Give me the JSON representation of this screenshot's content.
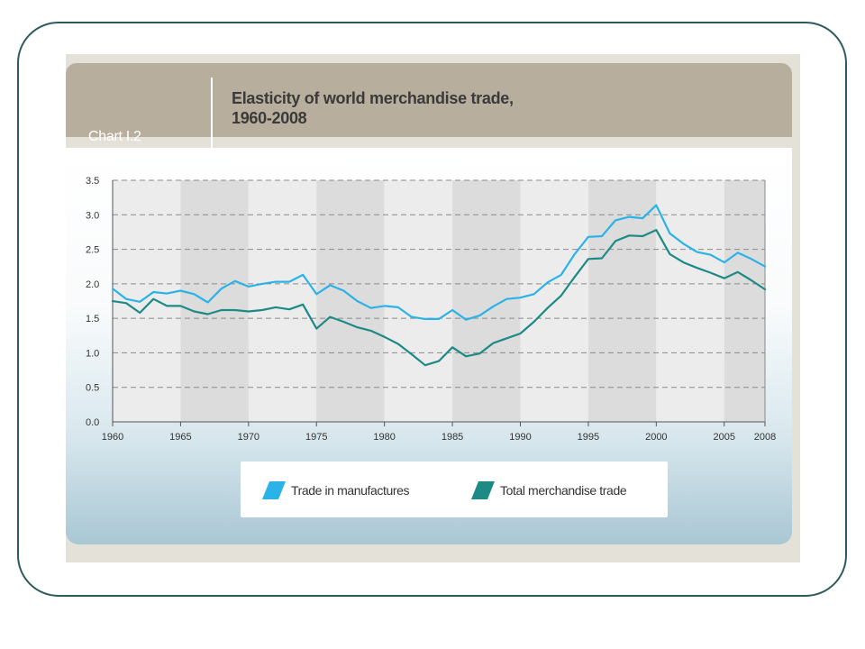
{
  "header": {
    "chart_number": "Chart I.2",
    "title_line1": "Elasticity of world merchandise trade,",
    "title_line2": "1960-2008"
  },
  "legend": {
    "items": [
      {
        "label": "Trade in manufactures",
        "color": "#2bb3e8"
      },
      {
        "label": "Total merchandise trade",
        "color": "#1e8a86"
      }
    ]
  },
  "colors": {
    "frame": "#2f5a5c",
    "header_band": "#b7ae9d",
    "plot_band_dark": "#dcdcdc",
    "plot_band_light": "#ececec"
  },
  "chart_data": {
    "type": "line",
    "title": "Elasticity of world merchandise trade, 1960-2008",
    "xlabel": "",
    "ylabel": "",
    "xlim": [
      1960,
      2008
    ],
    "ylim": [
      0,
      3.5
    ],
    "grid": true,
    "legend_position": "bottom",
    "x_ticks": [
      "1960",
      "1965",
      "1970",
      "1975",
      "1980",
      "1985",
      "1990",
      "1995",
      "2000",
      "2005",
      "2008"
    ],
    "y_ticks": [
      "0.0",
      "0.5",
      "1.0",
      "1.5",
      "2.0",
      "2.5",
      "3.0",
      "3.5"
    ],
    "x": [
      1960,
      1961,
      1962,
      1963,
      1964,
      1965,
      1966,
      1967,
      1968,
      1969,
      1970,
      1971,
      1972,
      1973,
      1974,
      1975,
      1976,
      1977,
      1978,
      1979,
      1980,
      1981,
      1982,
      1983,
      1984,
      1985,
      1986,
      1987,
      1988,
      1989,
      1990,
      1991,
      1992,
      1993,
      1994,
      1995,
      1996,
      1997,
      1998,
      1999,
      2000,
      2001,
      2002,
      2003,
      2004,
      2005,
      2006,
      2007,
      2008
    ],
    "series": [
      {
        "name": "Trade in manufactures",
        "color": "#2bb3e8",
        "values": [
          1.93,
          1.78,
          1.74,
          1.88,
          1.86,
          1.9,
          1.85,
          1.73,
          1.93,
          2.04,
          1.96,
          2.0,
          2.03,
          2.03,
          2.13,
          1.85,
          1.98,
          1.9,
          1.75,
          1.65,
          1.68,
          1.66,
          1.52,
          1.49,
          1.49,
          1.62,
          1.48,
          1.54,
          1.67,
          1.78,
          1.8,
          1.85,
          2.02,
          2.13,
          2.43,
          2.68,
          2.69,
          2.92,
          2.97,
          2.95,
          3.14,
          2.73,
          2.58,
          2.46,
          2.42,
          2.31,
          2.45,
          2.36,
          2.25
        ]
      },
      {
        "name": "Total merchandise trade",
        "color": "#1e8a86",
        "values": [
          1.75,
          1.72,
          1.58,
          1.78,
          1.68,
          1.68,
          1.6,
          1.56,
          1.62,
          1.62,
          1.6,
          1.62,
          1.66,
          1.63,
          1.7,
          1.35,
          1.52,
          1.45,
          1.37,
          1.32,
          1.23,
          1.13,
          0.98,
          0.82,
          0.88,
          1.08,
          0.95,
          0.99,
          1.14,
          1.21,
          1.28,
          1.45,
          1.65,
          1.83,
          2.1,
          2.36,
          2.37,
          2.62,
          2.7,
          2.69,
          2.78,
          2.43,
          2.31,
          2.23,
          2.16,
          2.08,
          2.17,
          2.05,
          1.92
        ]
      }
    ]
  }
}
